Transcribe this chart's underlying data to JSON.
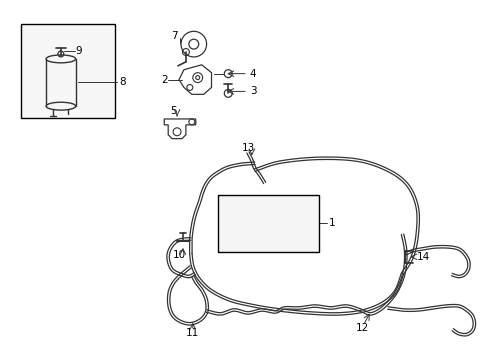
{
  "bg_color": "#ffffff",
  "lc": "#333333",
  "figsize": [
    4.89,
    3.6
  ],
  "dpi": 100
}
